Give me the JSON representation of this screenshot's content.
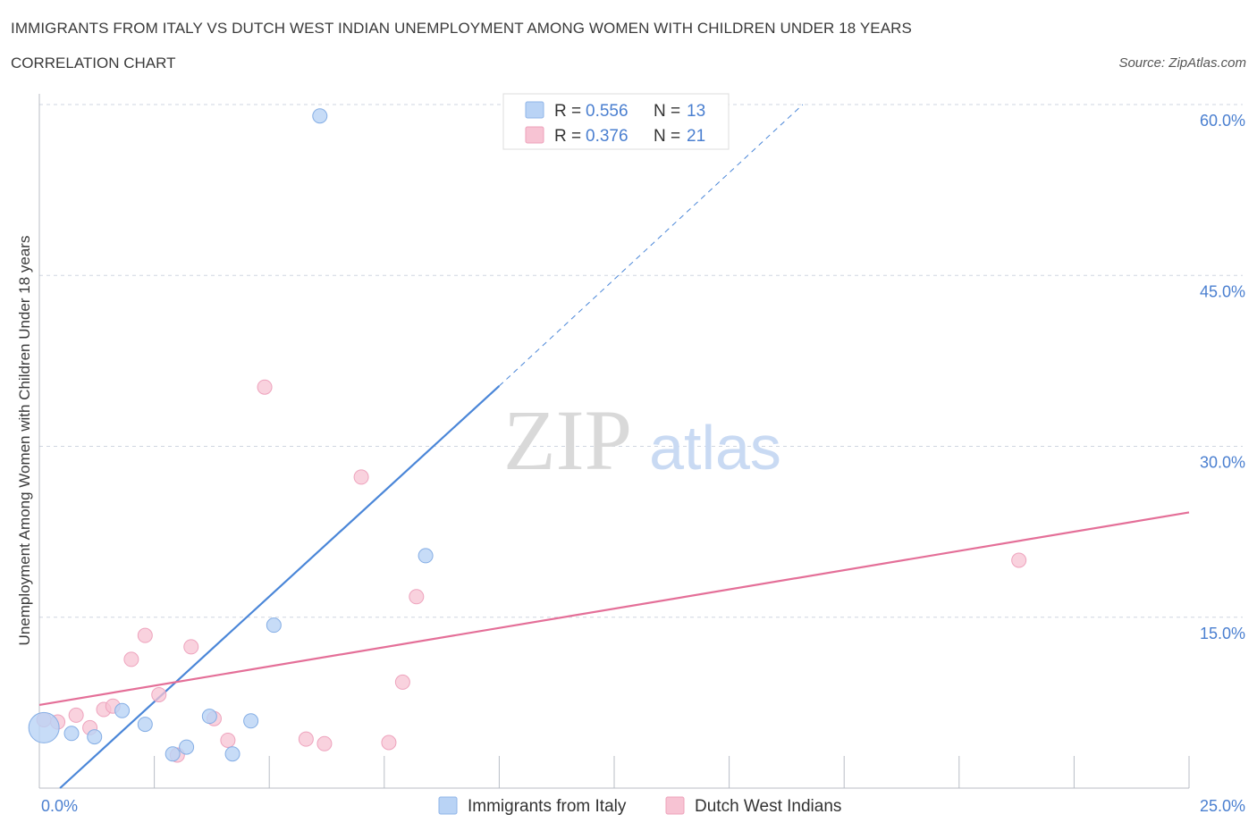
{
  "title": "IMMIGRANTS FROM ITALY VS DUTCH WEST INDIAN UNEMPLOYMENT AMONG WOMEN WITH CHILDREN UNDER 18 YEARS",
  "subtitle": "CORRELATION CHART",
  "source": "Source: ZipAtlas.com",
  "watermark": {
    "zip": "ZIP",
    "atlas": "atlas"
  },
  "colors": {
    "blue": "#4a86d8",
    "blue_fill": "#b9d3f5",
    "pink": "#e46f98",
    "pink_fill": "#f7c3d3",
    "tick_label": "#4a7fd0",
    "grid": "#cfd5e0"
  },
  "legend_box": {
    "rows": [
      {
        "r_label": "R = ",
        "r_value": "0.556",
        "n_label": "N = ",
        "n_value": "13"
      },
      {
        "r_label": "R = ",
        "r_value": "0.376",
        "n_label": "N = ",
        "n_value": "21"
      }
    ]
  },
  "chart_data": {
    "type": "scatter",
    "title": "IMMIGRANTS FROM ITALY VS DUTCH WEST INDIAN UNEMPLOYMENT AMONG WOMEN WITH CHILDREN UNDER 18 YEARS",
    "xlabel": "",
    "ylabel": "Unemployment Among Women with Children Under 18 years",
    "xlim": [
      0,
      25
    ],
    "ylim": [
      0,
      60
    ],
    "x_tick_labels": [
      "0.0%",
      "25.0%"
    ],
    "y_ticks": [
      15,
      30,
      45,
      60
    ],
    "y_tick_labels": [
      "15.0%",
      "30.0%",
      "45.0%",
      "60.0%"
    ],
    "grid": true,
    "legend_position": "bottom",
    "series": [
      {
        "name": "Immigrants from Italy",
        "color": "#4a86d8",
        "points": [
          {
            "x": 0.1,
            "y": 5.3,
            "big": true
          },
          {
            "x": 0.7,
            "y": 4.8
          },
          {
            "x": 1.2,
            "y": 4.5
          },
          {
            "x": 1.8,
            "y": 6.8
          },
          {
            "x": 2.3,
            "y": 5.6
          },
          {
            "x": 2.9,
            "y": 3.0
          },
          {
            "x": 3.2,
            "y": 3.6
          },
          {
            "x": 3.7,
            "y": 6.3
          },
          {
            "x": 4.2,
            "y": 3.0
          },
          {
            "x": 4.6,
            "y": 5.9
          },
          {
            "x": 5.1,
            "y": 14.3
          },
          {
            "x": 6.1,
            "y": 59.0
          },
          {
            "x": 8.4,
            "y": 20.4
          }
        ],
        "trend": {
          "x0": 0.45,
          "y0": 0.0,
          "x1": 10.0,
          "y1": 35.3,
          "dash_x1": 16.6,
          "dash_y1": 60.0
        }
      },
      {
        "name": "Dutch West Indians",
        "color": "#e46f98",
        "points": [
          {
            "x": 0.1,
            "y": 6.0
          },
          {
            "x": 0.4,
            "y": 5.8
          },
          {
            "x": 0.8,
            "y": 6.4
          },
          {
            "x": 1.1,
            "y": 5.3
          },
          {
            "x": 1.4,
            "y": 6.9
          },
          {
            "x": 1.6,
            "y": 7.2
          },
          {
            "x": 2.0,
            "y": 11.3
          },
          {
            "x": 2.3,
            "y": 13.4
          },
          {
            "x": 2.6,
            "y": 8.2
          },
          {
            "x": 3.0,
            "y": 2.9
          },
          {
            "x": 3.3,
            "y": 12.4
          },
          {
            "x": 3.8,
            "y": 6.1
          },
          {
            "x": 4.1,
            "y": 4.2
          },
          {
            "x": 4.9,
            "y": 35.2
          },
          {
            "x": 5.8,
            "y": 4.3
          },
          {
            "x": 6.2,
            "y": 3.9
          },
          {
            "x": 7.0,
            "y": 27.3
          },
          {
            "x": 7.6,
            "y": 4.0
          },
          {
            "x": 7.9,
            "y": 9.3
          },
          {
            "x": 8.2,
            "y": 16.8
          },
          {
            "x": 21.3,
            "y": 20.0
          }
        ],
        "trend": {
          "x0": 0.0,
          "y0": 7.3,
          "x1": 25.0,
          "y1": 24.2
        }
      }
    ]
  }
}
